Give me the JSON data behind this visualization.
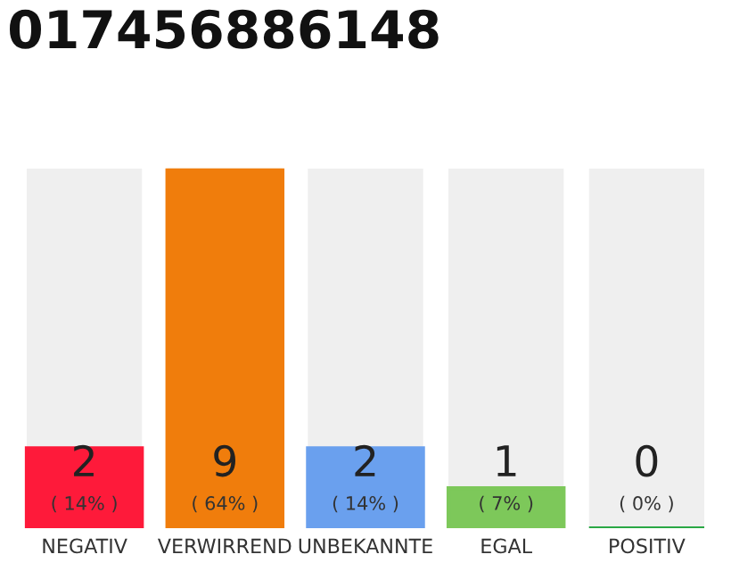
{
  "chart_data": {
    "type": "bar",
    "title": "017456886148",
    "categories": [
      "NEGATIV",
      "VERWIRREND",
      "UNBEKANNTE",
      "EGAL",
      "POSITIV"
    ],
    "values": [
      2,
      9,
      2,
      1,
      0
    ],
    "colors": [
      "#fe1a3a",
      "#f07d0c",
      "#6aa0ee",
      "#7dc85a",
      "#2aa845"
    ],
    "value_labels": [
      "2\n( 14% )",
      "9\n( 64% )",
      "2\n( 14% )",
      "1\n( 7% )",
      "0\n( 0% )"
    ],
    "grid": false,
    "legend": false
  }
}
